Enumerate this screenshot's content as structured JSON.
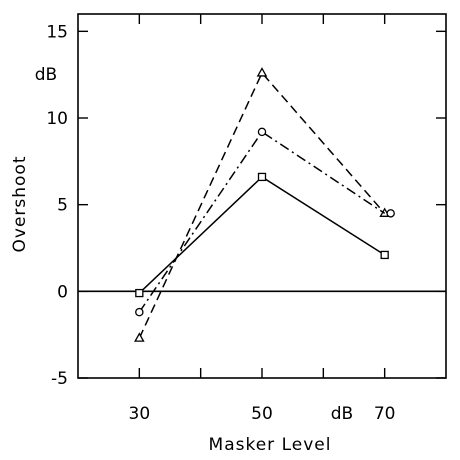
{
  "chart_data": {
    "type": "line",
    "xlabel": "Masker Level",
    "ylabel": "Overshoot",
    "y_unit_label": "dB",
    "x_unit_label": "dB",
    "xlim": [
      20,
      80
    ],
    "ylim": [
      -5,
      16
    ],
    "x_ticks": [
      30,
      50,
      70
    ],
    "x_tick_labels": [
      "30",
      "50",
      "70"
    ],
    "y_ticks": [
      -5,
      0,
      5,
      10,
      15
    ],
    "y_tick_labels": [
      "-5",
      "0",
      "5",
      "10",
      "15"
    ],
    "grid": false,
    "legend": "none",
    "reference_line_y": 0,
    "series": [
      {
        "marker": "triangle",
        "line_style": "dashed",
        "x": [
          30,
          50,
          70
        ],
        "y": [
          -2.7,
          12.6,
          4.5
        ]
      },
      {
        "marker": "circle",
        "line_style": "dash-dot",
        "x": [
          30,
          50,
          70
        ],
        "y": [
          -1.2,
          9.2,
          4.5
        ]
      },
      {
        "marker": "square",
        "line_style": "solid",
        "x": [
          30,
          50,
          70
        ],
        "y": [
          -0.1,
          6.6,
          2.1
        ]
      }
    ]
  }
}
